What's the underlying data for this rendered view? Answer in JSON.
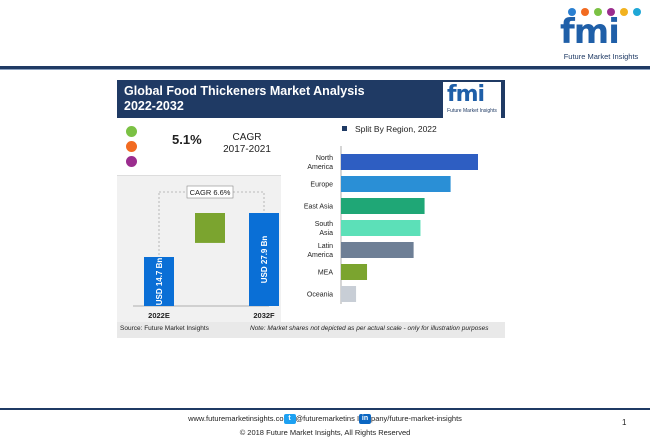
{
  "header": {
    "logo_text": "fmi",
    "logo_tagline": "Future Market Insights"
  },
  "panel": {
    "title": "Global Food Thickeners Market Analysis 2022-2032",
    "logo_text": "fmi",
    "logo_tagline": "Future Market Insights"
  },
  "stats": {
    "cagr_value": "5.1%",
    "cagr_label": "CAGR",
    "cagr_period": "2017-2021",
    "dot_colors": [
      "#7bc144",
      "#f26b21",
      "#9b2d8e"
    ]
  },
  "colors": {
    "navy": "#1f3a64",
    "bar_blue": "#0a6fd6",
    "bar_green": "#7ba42f"
  },
  "footer": {
    "source": "Source: Future Market Insights",
    "note": "Note: Market shares not depicted as per actual scale - only for illustration purposes",
    "contact_web": "www.futuremarketinsights.co",
    "contact_twitter": "@futuremarketins",
    "contact_linkedin_prefix": "I",
    "contact_linkedin": "pany/future-market-insights",
    "copyright": "© 2018 Future Market Insights, All Rights Reserved",
    "page_number": "1"
  },
  "chart_data": [
    {
      "type": "bar",
      "subtype": "waterfall",
      "categories": [
        "2022E",
        "2032F"
      ],
      "values": [
        14.7,
        27.9
      ],
      "bar_labels": [
        "USD 14.7 Bn",
        "USD 27.9 Bn"
      ],
      "increment_value": 13.2,
      "annotation": "CAGR 6.6%",
      "ylim": [
        0,
        30
      ]
    },
    {
      "type": "bar",
      "orientation": "horizontal",
      "title": "Split By Region, 2022",
      "categories": [
        "North America",
        "Europe",
        "East Asia",
        "South Asia",
        "Latin America",
        "MEA",
        "Oceania"
      ],
      "category_lines": [
        [
          "North",
          "America"
        ],
        [
          "Europe"
        ],
        [
          "East Asia"
        ],
        [
          "South",
          "Asia"
        ],
        [
          "Latin",
          "America"
        ],
        [
          "MEA"
        ],
        [
          "Oceania"
        ]
      ],
      "values": [
        100,
        80,
        61,
        58,
        53,
        19,
        11
      ],
      "colors": [
        "#2e5ec2",
        "#2a8fd6",
        "#1fa776",
        "#5ce0b8",
        "#6e7f96",
        "#7ba42f",
        "#c8ced6"
      ],
      "grid": false,
      "legend": "top"
    }
  ]
}
